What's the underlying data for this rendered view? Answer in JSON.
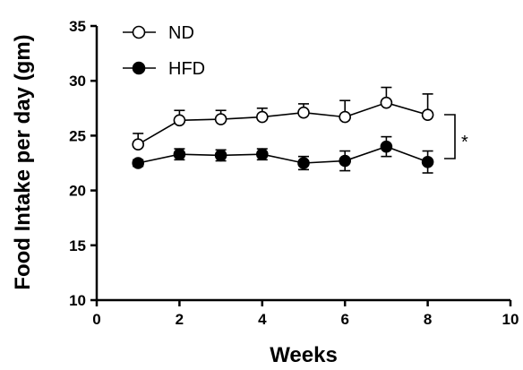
{
  "chart_data": {
    "type": "line",
    "title": "",
    "xlabel": "Weeks",
    "ylabel": "Food Intake per day (gm)",
    "xlim": [
      0,
      10
    ],
    "ylim": [
      10,
      35
    ],
    "xticks": [
      "0",
      "2",
      "4",
      "6",
      "8",
      "10"
    ],
    "yticks": [
      "10",
      "15",
      "20",
      "25",
      "30",
      "35"
    ],
    "grid": false,
    "legend_position": "top-left",
    "x": [
      1,
      2,
      3,
      4,
      5,
      6,
      7,
      8
    ],
    "series": [
      {
        "name": "ND",
        "marker": "open-circle",
        "color": "#000000",
        "values": [
          24.2,
          26.4,
          26.5,
          26.7,
          27.1,
          26.7,
          28.0,
          26.9
        ],
        "error": [
          1.0,
          0.9,
          0.8,
          0.8,
          0.8,
          1.5,
          1.4,
          1.9
        ]
      },
      {
        "name": "HFD",
        "marker": "filled-circle",
        "color": "#000000",
        "values": [
          22.5,
          23.3,
          23.2,
          23.3,
          22.5,
          22.7,
          24.0,
          22.6
        ],
        "error": [
          0.3,
          0.5,
          0.5,
          0.5,
          0.6,
          0.9,
          0.9,
          1.0
        ]
      }
    ],
    "annotations": [
      {
        "text": "*",
        "type": "significance-bracket",
        "between": [
          "ND",
          "HFD"
        ],
        "at_x": 8
      }
    ]
  }
}
